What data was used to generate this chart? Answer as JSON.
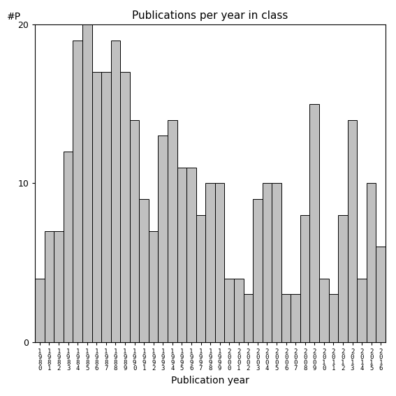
{
  "title": "Publications per year in class",
  "xlabel": "Publication year",
  "ylabel": "#P",
  "bar_color": "#c0c0c0",
  "bar_edge_color": "#000000",
  "years": [
    1980,
    1981,
    1982,
    1983,
    1984,
    1985,
    1986,
    1987,
    1988,
    1989,
    1990,
    1991,
    1992,
    1993,
    1994,
    1995,
    1996,
    1997,
    1998,
    1999,
    2000,
    2001,
    2002,
    2003,
    2004,
    2005,
    2006,
    2007,
    2008,
    2009,
    2010,
    2011,
    2012,
    2013,
    2014,
    2015,
    2016
  ],
  "values": [
    4,
    7,
    7,
    12,
    19,
    20,
    17,
    17,
    19,
    17,
    14,
    9,
    7,
    13,
    14,
    11,
    11,
    8,
    10,
    10,
    4,
    4,
    3,
    9,
    10,
    10,
    3,
    3,
    8,
    15,
    4,
    3,
    8,
    14,
    4,
    10,
    6
  ],
  "ylim": [
    0,
    20
  ],
  "yticks": [
    0,
    10,
    20
  ],
  "ytick_labels": [
    "0",
    "10",
    "20"
  ],
  "bg_color": "#ffffff"
}
